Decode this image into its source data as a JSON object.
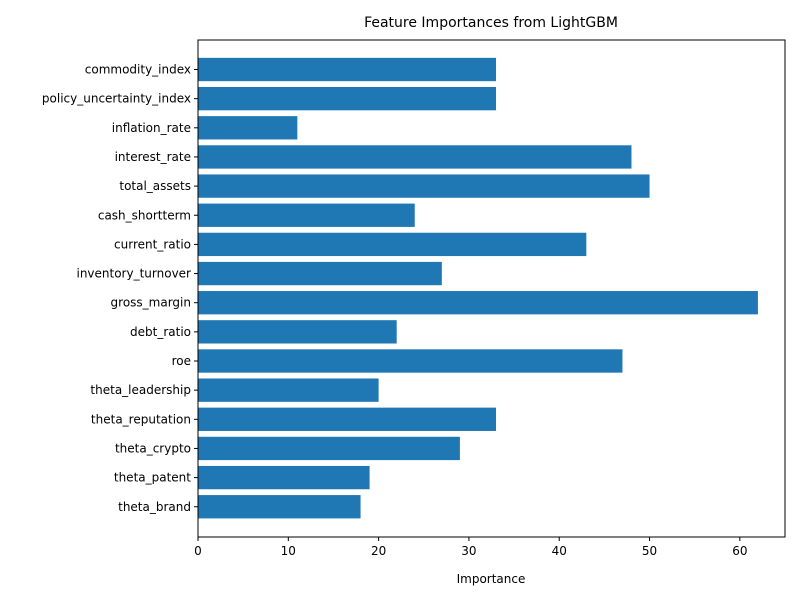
{
  "chart_data": {
    "type": "bar",
    "orientation": "horizontal",
    "title": "Feature Importances from LightGBM",
    "xlabel": "Importance",
    "ylabel": "",
    "xlim": [
      0,
      65
    ],
    "xticks": [
      0,
      10,
      20,
      30,
      40,
      50,
      60
    ],
    "grid": false,
    "legend": "none",
    "bar_color": "#1f77b4",
    "categories": [
      "commodity_index",
      "policy_uncertainty_index",
      "inflation_rate",
      "interest_rate",
      "total_assets",
      "cash_shortterm",
      "current_ratio",
      "inventory_turnover",
      "gross_margin",
      "debt_ratio",
      "roe",
      "theta_leadership",
      "theta_reputation",
      "theta_crypto",
      "theta_patent",
      "theta_brand"
    ],
    "values": [
      33,
      33,
      11,
      48,
      50,
      24,
      43,
      27,
      62,
      22,
      47,
      20,
      33,
      29,
      19,
      18
    ]
  }
}
